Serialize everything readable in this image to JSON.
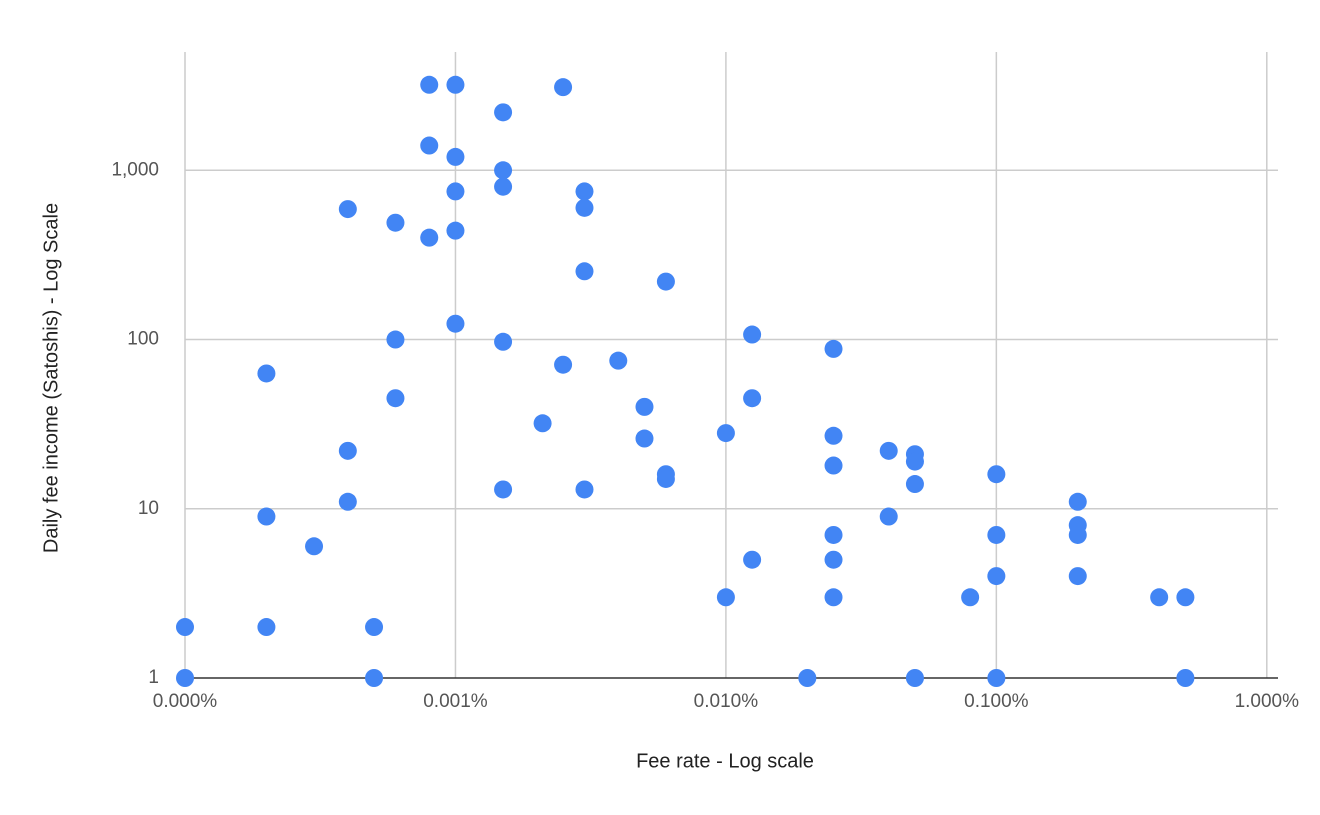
{
  "chart_data": {
    "type": "scatter",
    "x_label": "Fee rate - Log scale",
    "y_label": "Daily fee income (Satoshis) - Log Scale",
    "xscale": "log",
    "yscale": "log",
    "grid": true,
    "color": "#4285f4",
    "xlim": [
      0.0001,
      1.1
    ],
    "ylim": [
      1,
      5000
    ],
    "xticks": [
      {
        "value": 0.0001,
        "label": "0.000%"
      },
      {
        "value": 0.001,
        "label": "0.001%"
      },
      {
        "value": 0.01,
        "label": "0.010%"
      },
      {
        "value": 0.1,
        "label": "0.100%"
      },
      {
        "value": 1,
        "label": "1.000%"
      }
    ],
    "yticks": [
      1,
      10,
      100,
      {
        "value": 1000,
        "label": "1,000"
      }
    ],
    "x": [
      0.0001,
      0.0001,
      0.0002,
      0.0002,
      0.0002,
      0.0003,
      0.0004,
      0.0004,
      0.0004,
      0.0005,
      0.0005,
      0.0006,
      0.0006,
      0.0006,
      0.0008,
      0.0008,
      0.0008,
      0.001,
      0.001,
      0.001,
      0.001,
      0.001,
      0.0015,
      0.0015,
      0.0015,
      0.0015,
      0.0015,
      0.0021,
      0.0025,
      0.0025,
      0.003,
      0.003,
      0.003,
      0.003,
      0.004,
      0.005,
      0.005,
      0.006,
      0.006,
      0.006,
      0.01,
      0.01,
      0.0125,
      0.0125,
      0.0125,
      0.02,
      0.025,
      0.025,
      0.025,
      0.025,
      0.025,
      0.025,
      0.04,
      0.04,
      0.05,
      0.05,
      0.05,
      0.05,
      0.08,
      0.1,
      0.1,
      0.1,
      0.1,
      0.2,
      0.2,
      0.2,
      0.2,
      0.4,
      0.5,
      0.5
    ],
    "values": [
      2,
      1,
      63,
      9,
      2,
      6,
      590,
      22,
      11,
      2,
      1,
      490,
      100,
      45,
      3200,
      1400,
      400,
      3200,
      1200,
      750,
      440,
      124,
      2200,
      1000,
      800,
      97,
      13,
      32,
      3100,
      71,
      750,
      600,
      253,
      13,
      75,
      40,
      26,
      220,
      16,
      15,
      28,
      3,
      107,
      45,
      5,
      1,
      88,
      27,
      18,
      7,
      5,
      3,
      22,
      9,
      21,
      19,
      14,
      1,
      3,
      16,
      7,
      4,
      1,
      11,
      8,
      7,
      4,
      3,
      3,
      1
    ]
  }
}
